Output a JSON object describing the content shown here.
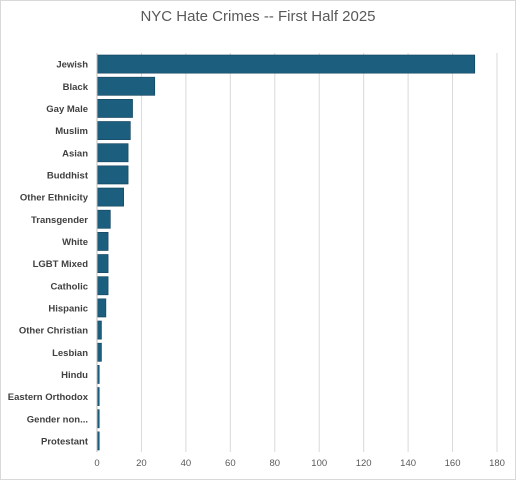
{
  "chart_data": {
    "type": "bar",
    "orientation": "horizontal",
    "title": "NYC Hate Crimes -- First Half 2025",
    "categories": [
      "Jewish",
      "Black",
      "Gay Male",
      "Muslim",
      "Asian",
      "Buddhist",
      "Other Ethnicity",
      "Transgender",
      "White",
      "LGBT Mixed",
      "Catholic",
      "Hispanic",
      "Other Christian",
      "Lesbian",
      "Hindu",
      "Eastern Orthodox",
      "Gender non...",
      "Protestant"
    ],
    "values": [
      170,
      26,
      16,
      15,
      14,
      14,
      12,
      6,
      5,
      5,
      5,
      4,
      2,
      2,
      1,
      1,
      1,
      1
    ],
    "xlim": [
      0,
      180
    ],
    "xticks": [
      0,
      20,
      40,
      60,
      80,
      100,
      120,
      140,
      160,
      180
    ],
    "grid": "vertical",
    "legend": "none",
    "bar_color": "#1b5e7e",
    "bar_outline_color": "#10405a",
    "grid_color": "#d9d9d9",
    "axis_color": "#bfbfbf"
  }
}
